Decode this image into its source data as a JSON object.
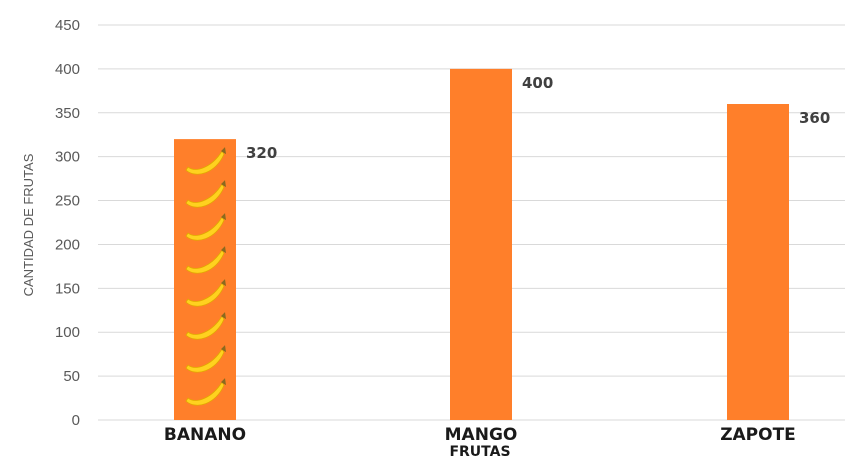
{
  "chart_data": {
    "type": "bar",
    "categories": [
      "BANANO",
      "MANGO",
      "ZAPOTE"
    ],
    "values": [
      320,
      400,
      360
    ],
    "data_labels": [
      "320",
      "400",
      "360"
    ],
    "ylabel": "CANTIDAD DE FRUTAS",
    "xlabel": "FRUTAS",
    "ylim": [
      0,
      450
    ],
    "yticks": [
      0,
      50,
      100,
      150,
      200,
      250,
      300,
      350,
      400,
      450
    ],
    "grid": true,
    "legend": "none",
    "colors": {
      "bar": "#ff7f2a",
      "grid": "#d9d9d9",
      "banana": "#ffd21f"
    },
    "banana_pattern_on": "BANANO"
  }
}
